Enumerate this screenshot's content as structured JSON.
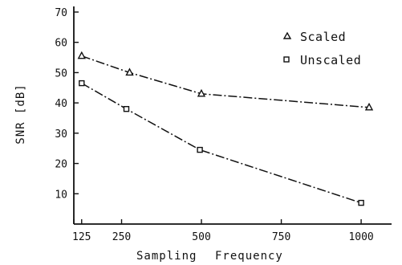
{
  "chart_data": {
    "type": "line",
    "xlabel_parts": [
      "Sampling",
      "Frequency"
    ],
    "ylabel": "SNR [dB]",
    "x_ticks": [
      125,
      250,
      500,
      750,
      1000
    ],
    "x_tick_labels": [
      "125",
      "250",
      "500",
      "750",
      "1000"
    ],
    "y_ticks": [
      10,
      20,
      30,
      40,
      50,
      60,
      70
    ],
    "y_tick_labels": [
      "10",
      "20",
      "30",
      "40",
      "50",
      "60",
      "70"
    ],
    "xlim": [
      0,
      1050
    ],
    "ylim": [
      0,
      70
    ],
    "grid": false,
    "legend_position": "top-right",
    "series": [
      {
        "name": "Scaled",
        "marker": "triangle",
        "x": [
          125,
          275,
          500,
          1025
        ],
        "y": [
          55.5,
          50,
          43,
          38.5
        ]
      },
      {
        "name": "Unscaled",
        "marker": "square",
        "x": [
          125,
          265,
          495,
          1000
        ],
        "y": [
          46.5,
          38,
          24.5,
          7
        ]
      }
    ]
  }
}
